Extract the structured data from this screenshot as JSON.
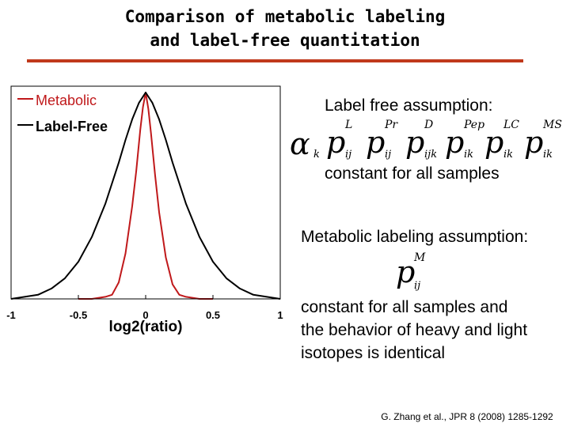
{
  "slide": {
    "title_line1": "Comparison of metabolic labeling",
    "title_line2": "and label-free quantitation",
    "accent_color": "#c0391b"
  },
  "right": {
    "label_free_heading": "Label free assumption:",
    "label_free_formula": {
      "alpha": "α",
      "alpha_sub": "k",
      "terms": [
        {
          "base": "p",
          "sup": "L",
          "sub": "ij"
        },
        {
          "base": "p",
          "sup": "Pr",
          "sub": "ij"
        },
        {
          "base": "p",
          "sup": "D",
          "sub": "ijk"
        },
        {
          "base": "p",
          "sup": "Pep",
          "sub": "ik"
        },
        {
          "base": "p",
          "sup": "LC",
          "sub": "ik"
        },
        {
          "base": "p",
          "sup": "MS",
          "sub": "ik"
        }
      ]
    },
    "label_free_text": "constant for all samples",
    "metabolic_heading": "Metabolic labeling assumption:",
    "metabolic_formula": {
      "base": "p",
      "sup": "M",
      "sub": "ij"
    },
    "metabolic_text_lines": [
      "constant for all samples and",
      "the behavior of heavy and light",
      "isotopes is identical"
    ]
  },
  "citation": "G. Zhang et al., JPR 8 (2008) 1285-1292",
  "chart_data": {
    "type": "line",
    "xlabel": "log2(ratio)",
    "ylabel": "",
    "xlim": [
      -1,
      1
    ],
    "ylim": [
      0,
      1.0
    ],
    "x_ticks": [
      "-1",
      "-0.5",
      "0",
      "0.5",
      "1"
    ],
    "grid": false,
    "legend_position": "top-left",
    "series": [
      {
        "name": "Metabolic",
        "color": "#c0191b",
        "x": [
          -0.5,
          -0.4,
          -0.3,
          -0.25,
          -0.2,
          -0.15,
          -0.1,
          -0.07,
          -0.04,
          -0.02,
          0.0,
          0.02,
          0.04,
          0.07,
          0.1,
          0.15,
          0.2,
          0.25,
          0.3,
          0.4,
          0.5
        ],
        "y": [
          0.0,
          0.0,
          0.01,
          0.02,
          0.08,
          0.22,
          0.45,
          0.62,
          0.82,
          0.93,
          1.0,
          0.92,
          0.8,
          0.6,
          0.42,
          0.2,
          0.07,
          0.02,
          0.01,
          0.0,
          0.0
        ]
      },
      {
        "name": "Label-Free",
        "color": "#000000",
        "x": [
          -1.0,
          -0.9,
          -0.8,
          -0.7,
          -0.6,
          -0.5,
          -0.4,
          -0.3,
          -0.2,
          -0.15,
          -0.1,
          -0.05,
          0.0,
          0.05,
          0.1,
          0.15,
          0.2,
          0.3,
          0.4,
          0.5,
          0.6,
          0.7,
          0.8,
          0.9,
          1.0
        ],
        "y": [
          0.0,
          0.01,
          0.02,
          0.05,
          0.1,
          0.18,
          0.3,
          0.46,
          0.66,
          0.77,
          0.87,
          0.95,
          1.0,
          0.95,
          0.87,
          0.77,
          0.66,
          0.46,
          0.3,
          0.18,
          0.1,
          0.05,
          0.02,
          0.01,
          0.0
        ]
      }
    ]
  }
}
